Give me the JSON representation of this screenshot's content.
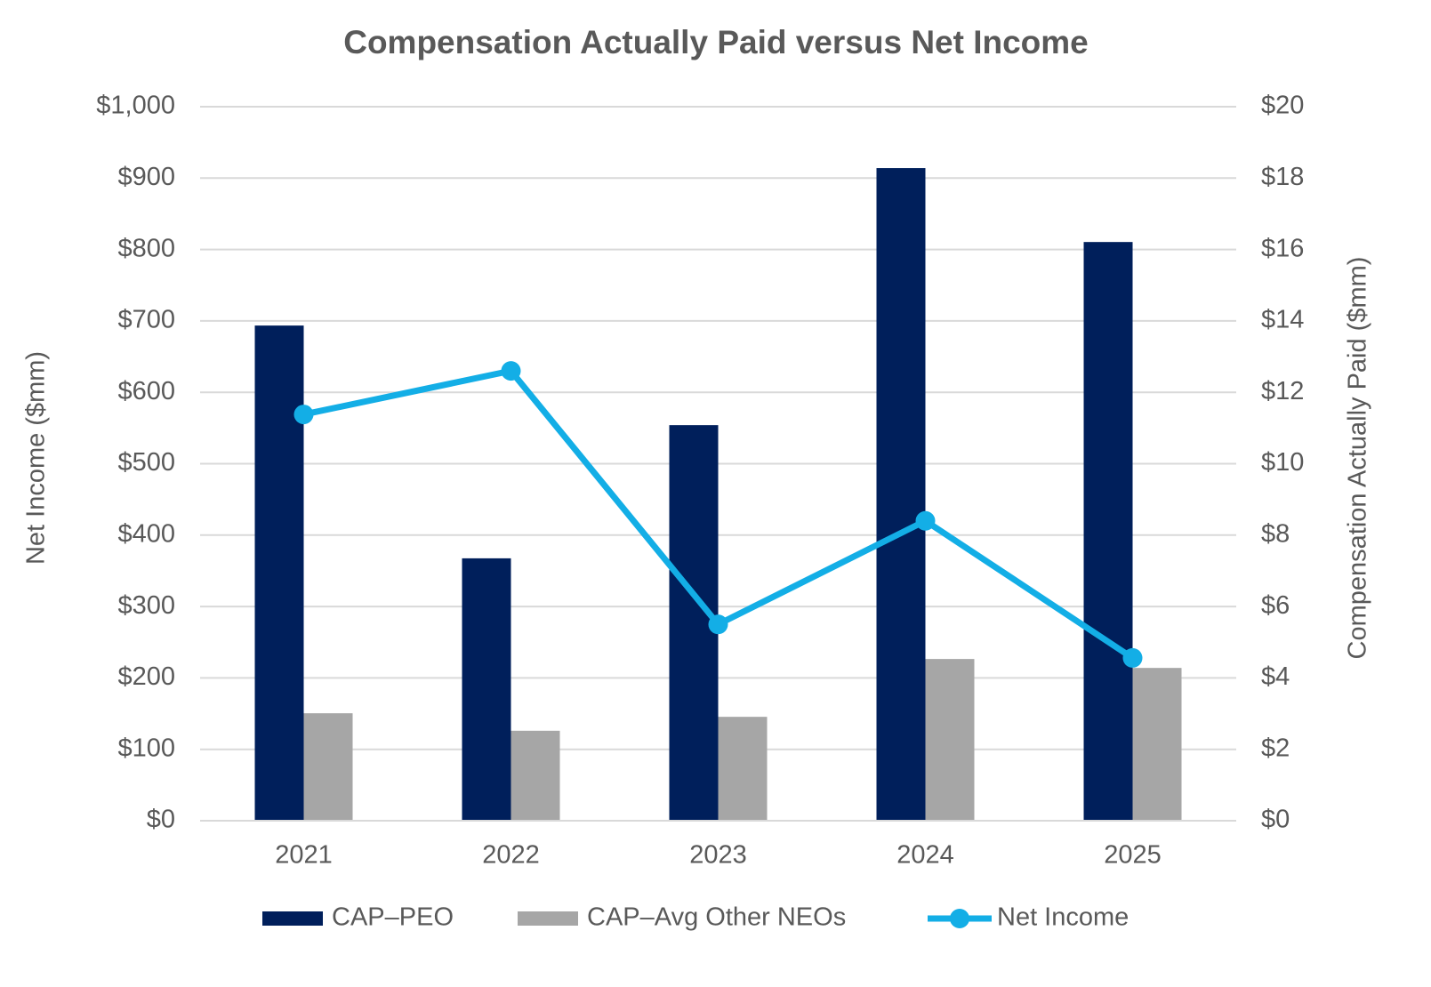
{
  "chart_data": {
    "type": "bar",
    "title": "Compensation Actually Paid versus Net Income",
    "y_label": "Net Income ($mm)",
    "y2_label": "Compensation Actually Paid ($mm)",
    "categories": [
      "2021",
      "2022",
      "2023",
      "2024",
      "2025"
    ],
    "series": [
      {
        "name": "CAP–PEO",
        "type": "bar",
        "axis": "y2",
        "color": "#001f5b",
        "values": [
          13.87,
          7.35,
          11.08,
          18.28,
          16.21
        ]
      },
      {
        "name": "CAP–Avg Other NEOs",
        "type": "bar",
        "axis": "y2",
        "color": "#a6a6a6",
        "values": [
          3.01,
          2.52,
          2.91,
          4.53,
          4.28
        ]
      },
      {
        "name": "Net Income",
        "type": "line",
        "axis": "y",
        "color": "#13aee6",
        "values": [
          569,
          630,
          275,
          420,
          228
        ]
      }
    ],
    "ylim": [
      0,
      1000
    ],
    "yticks": [
      {
        "value": 0,
        "label": "$0"
      },
      {
        "value": 100,
        "label": "$100"
      },
      {
        "value": 200,
        "label": "$200"
      },
      {
        "value": 300,
        "label": "$300"
      },
      {
        "value": 400,
        "label": "$400"
      },
      {
        "value": 500,
        "label": "$500"
      },
      {
        "value": 600,
        "label": "$600"
      },
      {
        "value": 700,
        "label": "$700"
      },
      {
        "value": 800,
        "label": "$800"
      },
      {
        "value": 900,
        "label": "$900"
      },
      {
        "value": 1000,
        "label": "$1,000"
      }
    ],
    "y2lim": [
      0,
      20
    ],
    "y2ticks": [
      {
        "value": 0,
        "label": "$0"
      },
      {
        "value": 2,
        "label": "$2"
      },
      {
        "value": 4,
        "label": "$4"
      },
      {
        "value": 6,
        "label": "$6"
      },
      {
        "value": 8,
        "label": "$8"
      },
      {
        "value": 10,
        "label": "$10"
      },
      {
        "value": 12,
        "label": "$12"
      },
      {
        "value": 14,
        "label": "$14"
      },
      {
        "value": 16,
        "label": "$16"
      },
      {
        "value": 18,
        "label": "$18"
      },
      {
        "value": 20,
        "label": "$20"
      }
    ],
    "grid": true,
    "legend": "bottom"
  }
}
